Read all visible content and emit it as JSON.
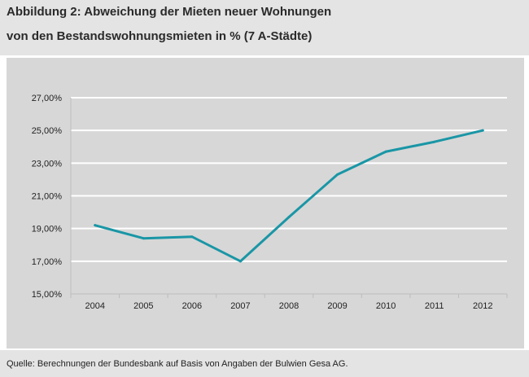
{
  "header": {
    "title_line1": "Abbildung 2: Abweichung der Mieten neuer Wohnungen",
    "title_line2": "von  den Bestandswohnungsmieten in % (7 A-Städte)"
  },
  "footer": {
    "source": "Quelle: Berechnungen der Bundesbank auf Basis von Angaben der Bulwien Gesa AG."
  },
  "chart_data": {
    "type": "line",
    "title": "Abbildung 2: Abweichung der Mieten neuer Wohnungen von den Bestandswohnungsmieten in % (7 A-Städte)",
    "xlabel": "",
    "ylabel": "",
    "categories": [
      "2004",
      "2005",
      "2006",
      "2007",
      "2008",
      "2009",
      "2010",
      "2011",
      "2012"
    ],
    "series": [
      {
        "values": [
          19.2,
          18.4,
          18.5,
          17.0,
          19.7,
          22.3,
          23.7,
          24.3,
          25.0
        ]
      }
    ],
    "ylim": [
      15,
      27
    ],
    "yticks": [
      15,
      17,
      19,
      21,
      23,
      25,
      27
    ],
    "ytick_labels": [
      "15,00%",
      "17,00%",
      "19,00%",
      "21,00%",
      "23,00%",
      "25,00%",
      "27,00%"
    ],
    "grid": true,
    "legend": "none",
    "colors": {
      "line": "#1a96a6",
      "grid": "#ffffff",
      "axis": "#bdbdbd",
      "plot_background": "#d7d7d7",
      "header_background": "#e4e4e4"
    }
  }
}
